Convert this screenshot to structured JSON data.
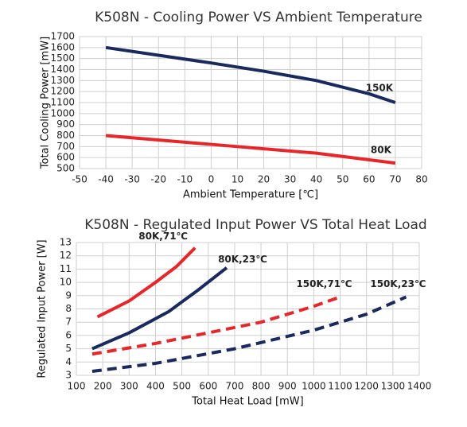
{
  "chart_data": [
    {
      "type": "line",
      "title": "K508N - Cooling Power VS Ambient Temperature",
      "x_label": "Ambient Temperature [℃]",
      "y_label": "Total Cooling Power [mW]",
      "xlim": [
        -50,
        80
      ],
      "xticks": [
        -50,
        -40,
        -30,
        -20,
        -10,
        0,
        10,
        20,
        30,
        40,
        50,
        60,
        70,
        80
      ],
      "ylim": [
        500,
        1700
      ],
      "yticks": [
        500,
        600,
        700,
        800,
        900,
        1000,
        1100,
        1200,
        1300,
        1400,
        1500,
        1600,
        1700
      ],
      "grid": true,
      "series": [
        {
          "name": "150K",
          "color": "#1b2a5e",
          "dashed": false,
          "x": [
            -40,
            -20,
            0,
            20,
            40,
            60,
            70
          ],
          "values": [
            1600,
            1530,
            1460,
            1385,
            1300,
            1180,
            1100
          ]
        },
        {
          "name": "80K",
          "color": "#e8262a",
          "dashed": false,
          "x": [
            -40,
            0,
            40,
            70
          ],
          "values": [
            800,
            720,
            640,
            550
          ]
        }
      ]
    },
    {
      "type": "line",
      "title": "K508N - Regulated Input Power VS Total Heat Load",
      "x_label": "Total Heat Load [mW]",
      "y_label": "Regulated Input Power [W]",
      "xlim": [
        100,
        1400
      ],
      "xticks": [
        100,
        200,
        300,
        400,
        500,
        600,
        700,
        800,
        900,
        1000,
        1100,
        1200,
        1300,
        1400
      ],
      "ylim": [
        3,
        13
      ],
      "yticks": [
        3,
        4,
        5,
        6,
        7,
        8,
        9,
        10,
        11,
        12,
        13
      ],
      "grid": true,
      "series": [
        {
          "name": "80K,71℃",
          "color": "#e8262a",
          "dashed": false,
          "x": [
            180,
            300,
            400,
            480,
            550
          ],
          "values": [
            7.4,
            8.6,
            10,
            11.2,
            12.6
          ]
        },
        {
          "name": "80K,23℃",
          "color": "#1b2a5e",
          "dashed": false,
          "x": [
            160,
            300,
            450,
            560,
            670
          ],
          "values": [
            5.0,
            6.2,
            7.8,
            9.4,
            11.1
          ]
        },
        {
          "name": "150K,71℃",
          "color": "#e8262a",
          "dashed": true,
          "x": [
            160,
            400,
            600,
            800,
            1000,
            1100
          ],
          "values": [
            4.6,
            5.4,
            6.2,
            7.0,
            8.2,
            8.9
          ]
        },
        {
          "name": "150K,23℃",
          "color": "#1b2a5e",
          "dashed": true,
          "x": [
            160,
            400,
            700,
            1000,
            1200,
            1350
          ],
          "values": [
            3.3,
            3.9,
            5.0,
            6.4,
            7.6,
            8.9
          ]
        }
      ]
    }
  ]
}
